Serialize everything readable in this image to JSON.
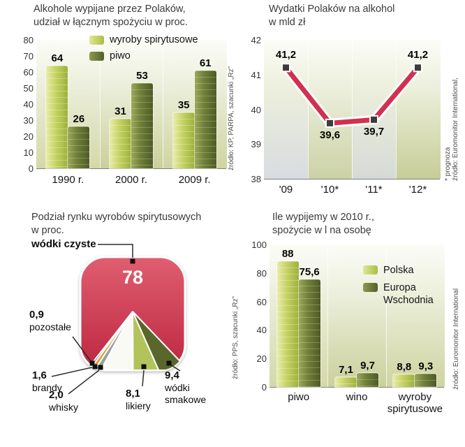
{
  "page": {
    "background": "#ffffff"
  },
  "chart_data": [
    {
      "id": "alkohole-udzial",
      "type": "bar",
      "title_lines": [
        "Alkohole wypijane przez Polaków,",
        "udział w łącznym spożyciu w proc."
      ],
      "categories": [
        "1990 r.",
        "2000 r.",
        "2009 r."
      ],
      "series": [
        {
          "name": "wyroby spirytusowe",
          "color": "#c3d05f",
          "values": [
            64,
            31,
            35
          ]
        },
        {
          "name": "piwo",
          "color": "#5c6a2d",
          "values": [
            26,
            53,
            61
          ]
        }
      ],
      "value_labels": [
        [
          "64",
          "26"
        ],
        [
          "31",
          "53"
        ],
        [
          "35",
          "61"
        ]
      ],
      "ylim": [
        0,
        80
      ],
      "yticks": [
        80,
        70,
        60,
        50,
        40,
        30,
        20,
        10,
        0
      ],
      "legend_position": "top-right",
      "source": "źródło: KP, PARPA, szacunki „Rz”"
    },
    {
      "id": "wydatki-na-alkohol",
      "type": "line",
      "title_lines": [
        "Wydatki Polaków na alkohol",
        "w mld zł"
      ],
      "x": [
        "'09",
        "'10*",
        "'11*",
        "'12*"
      ],
      "values": [
        41.2,
        39.6,
        39.7,
        41.2
      ],
      "value_labels": [
        "41,2",
        "39,6",
        "39,7",
        "41,2"
      ],
      "label_positions": [
        "above",
        "below",
        "below",
        "above"
      ],
      "ylim": [
        38,
        42
      ],
      "yticks": [
        42,
        41,
        40,
        39,
        38
      ],
      "line_color": "#d23050",
      "marker_color": "#3c3c40",
      "source_lines": [
        "źródło: Euromonitor International,",
        "* prognoza"
      ]
    },
    {
      "id": "rynek-wyrobow-spirytusowych",
      "type": "pie",
      "title_lines": [
        "Podział rynku wyrobów spirytusowych",
        "w proc."
      ],
      "slices": [
        {
          "label": "wódki czyste",
          "value": 78,
          "value_label": "78",
          "color": "#cf3048"
        },
        {
          "label": "pozostałe",
          "value": 0.9,
          "value_label": "0,9",
          "color": "#2e3c57"
        },
        {
          "label": "brandy",
          "value": 1.6,
          "value_label": "1,6",
          "color": "#d7a33c"
        },
        {
          "label": "whisky",
          "value": 2.0,
          "value_label": "2,0",
          "color": "#9b9f9e"
        },
        {
          "label": "likiery",
          "value": 8.1,
          "value_label": "8,1",
          "color": "#b3c35c"
        },
        {
          "label": "wódki smakowe",
          "value": 9.4,
          "value_label": "9,4",
          "color": "#5a672c"
        }
      ],
      "source": "źródło: PPS, szacunki „Rz”"
    },
    {
      "id": "spozycie-2010",
      "type": "bar",
      "title_lines": [
        "Ile wypijemy w 2010 r.,",
        "spożycie w l na osobę"
      ],
      "categories": [
        "piwo",
        "wino",
        "wyroby spirytusowe"
      ],
      "series": [
        {
          "name": "Polska",
          "color": "#c3d05f",
          "values": [
            88,
            7.1,
            8.8
          ]
        },
        {
          "name": "Europa Wschodnia",
          "color": "#5c6a2d",
          "values": [
            75.6,
            9.7,
            9.3
          ]
        }
      ],
      "value_labels": [
        [
          "88",
          "75,6"
        ],
        [
          "7,1",
          "9,7"
        ],
        [
          "8,8",
          "9,3"
        ]
      ],
      "ylim": [
        0,
        100
      ],
      "yticks": [
        100,
        80,
        60,
        40,
        20,
        0
      ],
      "legend_position": "top-right",
      "source": "źródło: Euromonitor International"
    }
  ]
}
